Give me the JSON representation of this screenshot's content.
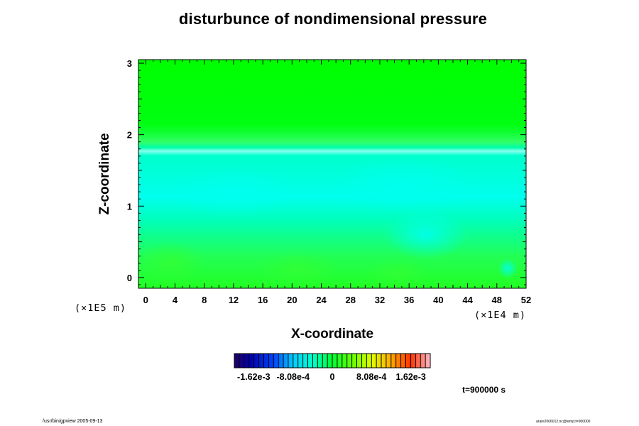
{
  "chart_data": {
    "type": "heatmap",
    "title": "disturbunce of nondimensional pressure",
    "xlabel": "X-coordinate",
    "ylabel": "Z-coordinate",
    "x_unit": "(×1E4 m)",
    "y_unit": "(×1E5 m)",
    "xlim": [
      -1,
      52
    ],
    "ylim": [
      -0.15,
      3.05
    ],
    "x_ticks": [
      "0",
      "4",
      "8",
      "12",
      "16",
      "20",
      "24",
      "28",
      "32",
      "36",
      "40",
      "44",
      "48",
      "52"
    ],
    "y_ticks": [
      "0",
      "1",
      "2",
      "3"
    ],
    "z_profile": [
      {
        "z": -0.15,
        "value": 0.0
      },
      {
        "z": 0.2,
        "value": 0.0
      },
      {
        "z": 0.6,
        "value": -0.0001
      },
      {
        "z": 0.9,
        "value": -0.0003
      },
      {
        "z": 1.2,
        "value": -0.0005
      },
      {
        "z": 1.4,
        "value": -0.0006
      },
      {
        "z": 1.6,
        "value": -0.0004
      },
      {
        "z": 1.75,
        "value": -0.0003
      },
      {
        "z": 1.82,
        "value": -0.0006
      },
      {
        "z": 1.9,
        "value": -0.0002
      },
      {
        "z": 2.05,
        "value": 0.0001
      },
      {
        "z": 2.2,
        "value": 0.0
      },
      {
        "z": 3.05,
        "value": 0.0
      }
    ],
    "colorbar": {
      "labels": [
        "-1.62e-3",
        "-8.08e-4",
        "0",
        "8.08e-4",
        "1.62e-3"
      ],
      "range": [
        -0.00202,
        0.00202
      ]
    }
  },
  "annotations": {
    "time": "t=900000 s",
    "footer_left": "/usr/bin/gpview 2005-09-13",
    "footer_right": "arare2006012.nc@temp;t=900000"
  },
  "colors": {
    "field_top": "#00ff00",
    "field_mid": "#00ffcc",
    "field_band": "#66ffee",
    "field_bottom": "#22ff44"
  }
}
